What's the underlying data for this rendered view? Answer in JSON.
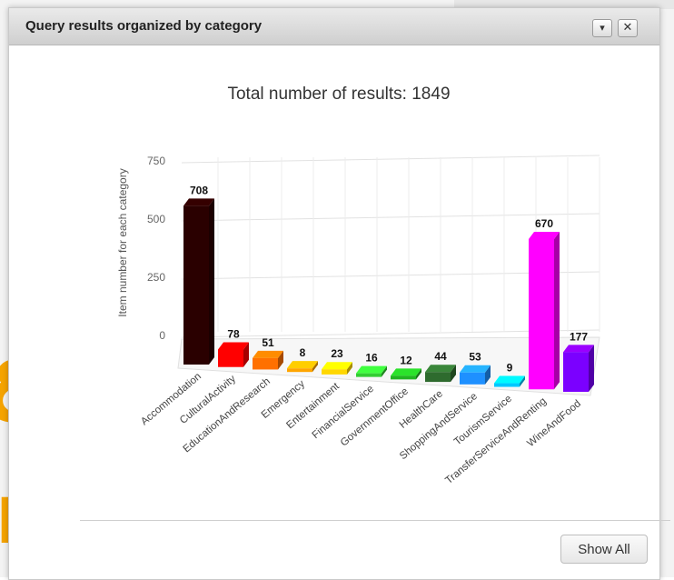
{
  "dialog": {
    "title": "Query results organized by category",
    "dropdown_icon": "chevron-down-icon",
    "close_icon": "close-icon",
    "show_all_label": "Show All"
  },
  "background": {
    "letter_amp": "&",
    "letter_rs": "rs"
  },
  "chart_data": {
    "type": "bar",
    "title": "Total number of results: 1849",
    "ylabel": "Item number for each category",
    "xlabel": "",
    "ylim": [
      0,
      750
    ],
    "yticks": [
      0,
      250,
      500,
      750
    ],
    "grid": true,
    "three_d": true,
    "categories": [
      "Accommodation",
      "CulturalActivity",
      "EducationAndResearch",
      "Emergency",
      "Entertainment",
      "FinancialService",
      "GovernmentOffice",
      "HealthCare",
      "ShoppingAndService",
      "TourismService",
      "TransferServiceAndRenting",
      "WineAndFood"
    ],
    "values": [
      708,
      78,
      51,
      8,
      23,
      16,
      12,
      44,
      53,
      9,
      670,
      177
    ],
    "colors": [
      "#2a0000",
      "#ff0000",
      "#ff7000",
      "#ffa500",
      "#ffd700",
      "#32cd32",
      "#22b522",
      "#2e6b2e",
      "#1e90ff",
      "#00c8ff",
      "#ff00ff",
      "#7b00ff"
    ]
  }
}
